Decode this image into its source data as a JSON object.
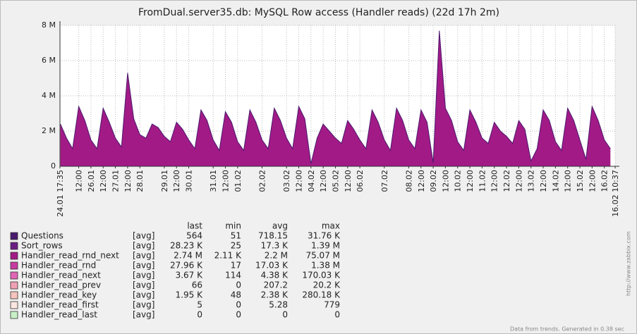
{
  "chart_data": {
    "type": "area",
    "title": "FromDual.server35.db: MySQL Row access (Handler reads)  (22d 17h 2m)",
    "x": [
      "24.01 18:00",
      "25.01 00:00",
      "25.01 06:00",
      "25.01 12:00",
      "25.01 18:00",
      "26.01 00:00",
      "26.01 06:00",
      "26.01 12:00",
      "26.01 18:00",
      "27.01 00:00",
      "27.01 06:00",
      "27.01 12:00",
      "27.01 18:00",
      "28.01 00:00",
      "28.01 06:00",
      "28.01 12:00",
      "28.01 18:00",
      "29.01 00:00",
      "29.01 06:00",
      "29.01 12:00",
      "29.01 18:00",
      "30.01 00:00",
      "30.01 06:00",
      "30.01 12:00",
      "30.01 18:00",
      "31.01 00:00",
      "31.01 06:00",
      "31.01 12:00",
      "31.01 18:00",
      "01.02 00:00",
      "01.02 06:00",
      "01.02 12:00",
      "01.02 18:00",
      "02.02 00:00",
      "02.02 06:00",
      "02.02 12:00",
      "02.02 18:00",
      "03.02 00:00",
      "03.02 06:00",
      "03.02 12:00",
      "03.02 18:00",
      "04.02 00:00",
      "04.02 06:00",
      "04.02 12:00",
      "04.02 18:00",
      "05.02 00:00",
      "05.02 06:00",
      "05.02 12:00",
      "05.02 18:00",
      "06.02 00:00",
      "06.02 06:00",
      "06.02 12:00",
      "06.02 18:00",
      "07.02 00:00",
      "07.02 06:00",
      "07.02 12:00",
      "07.02 18:00",
      "08.02 00:00",
      "08.02 06:00",
      "08.02 12:00",
      "08.02 18:00",
      "09.02 00:00",
      "09.02 06:00",
      "09.02 12:00",
      "09.02 18:00",
      "10.02 00:00",
      "10.02 06:00",
      "10.02 12:00",
      "10.02 18:00",
      "11.02 00:00",
      "11.02 06:00",
      "11.02 12:00",
      "11.02 18:00",
      "12.02 00:00",
      "12.02 06:00",
      "12.02 12:00",
      "12.02 18:00",
      "13.02 00:00",
      "13.02 06:00",
      "13.02 12:00",
      "13.02 18:00",
      "14.02 00:00",
      "14.02 06:00",
      "14.02 12:00",
      "14.02 18:00",
      "15.02 00:00",
      "15.02 06:00",
      "15.02 12:00",
      "15.02 18:00",
      "16.02 00:00",
      "16.02 06:00"
    ],
    "xlim": [
      "24.01 17:35",
      "16.02 10:37"
    ],
    "xticks": [
      {
        "value": "24.01 17:35",
        "label": "24.01 17:35"
      },
      {
        "value": "25.01 12:00",
        "label": "12:00"
      },
      {
        "value": "26.01 00:00",
        "label": "26.01"
      },
      {
        "value": "26.01 12:00",
        "label": "12:00"
      },
      {
        "value": "27.01 00:00",
        "label": "27.01"
      },
      {
        "value": "27.01 12:00",
        "label": "12:00"
      },
      {
        "value": "28.01 00:00",
        "label": "28.01"
      },
      {
        "value": "29.01 00:00",
        "label": "29.01"
      },
      {
        "value": "29.01 12:00",
        "label": "12:00"
      },
      {
        "value": "30.01 00:00",
        "label": "30.01"
      },
      {
        "value": "31.01 00:00",
        "label": "31.01"
      },
      {
        "value": "31.01 12:00",
        "label": "12:00"
      },
      {
        "value": "01.02 00:00",
        "label": "01.02"
      },
      {
        "value": "02.02 00:00",
        "label": "02.02"
      },
      {
        "value": "03.02 00:00",
        "label": "03.02"
      },
      {
        "value": "03.02 12:00",
        "label": "12:00"
      },
      {
        "value": "04.02 00:00",
        "label": "04.02"
      },
      {
        "value": "04.02 12:00",
        "label": "12:00"
      },
      {
        "value": "05.02 00:00",
        "label": "05.02"
      },
      {
        "value": "05.02 12:00",
        "label": "12:00"
      },
      {
        "value": "06.02 00:00",
        "label": "06.02"
      },
      {
        "value": "07.02 00:00",
        "label": "07.02"
      },
      {
        "value": "08.02 00:00",
        "label": "08.02"
      },
      {
        "value": "08.02 12:00",
        "label": "12:00"
      },
      {
        "value": "09.02 00:00",
        "label": "09.02"
      },
      {
        "value": "09.02 12:00",
        "label": "12:00"
      },
      {
        "value": "10.02 00:00",
        "label": "10.02"
      },
      {
        "value": "10.02 12:00",
        "label": "12:00"
      },
      {
        "value": "11.02 00:00",
        "label": "11.02"
      },
      {
        "value": "11.02 12:00",
        "label": "12:00"
      },
      {
        "value": "12.02 00:00",
        "label": "12.02"
      },
      {
        "value": "12.02 12:00",
        "label": "12:00"
      },
      {
        "value": "13.02 00:00",
        "label": "13.02"
      },
      {
        "value": "13.02 12:00",
        "label": "12:00"
      },
      {
        "value": "14.02 00:00",
        "label": "14.02"
      },
      {
        "value": "14.02 12:00",
        "label": "12:00"
      },
      {
        "value": "15.02 00:00",
        "label": "15.02"
      },
      {
        "value": "15.02 12:00",
        "label": "12:00"
      },
      {
        "value": "16.02 00:00",
        "label": "16.02"
      },
      {
        "value": "16.02 10:37",
        "label": "16.02 10:37"
      }
    ],
    "ylim": [
      0,
      8000000
    ],
    "yticks": [
      0,
      {
        "value": 2000000,
        "label": "2 M"
      },
      {
        "value": 4000000,
        "label": "4 M"
      },
      {
        "value": 6000000,
        "label": "6 M"
      },
      {
        "value": 8000000,
        "label": "8 M"
      }
    ],
    "grid": true,
    "columns": [
      "last",
      "min",
      "avg",
      "max"
    ],
    "series": [
      {
        "name": "Questions",
        "color": "#4a1a6e",
        "func": "[avg]",
        "last": "564",
        "min": "51",
        "avg": "718.15",
        "max": "31.76 K"
      },
      {
        "name": "Sort_rows",
        "color": "#6b1d82",
        "func": "[avg]",
        "last": "28.23 K",
        "min": "25",
        "avg": "17.3 K",
        "max": "1.39 M"
      },
      {
        "name": "Handler_read_rnd_next",
        "color": "#a21a86",
        "func": "[avg]",
        "last": "2.74 M",
        "min": "2.11 K",
        "avg": "2.2 M",
        "max": "75.07 M",
        "values": [
          2400000,
          1600000,
          1000000,
          3400000,
          2600000,
          1500000,
          1000000,
          3300000,
          2500000,
          1600000,
          1100000,
          5300000,
          2700000,
          1800000,
          1600000,
          2400000,
          2200000,
          1700000,
          1400000,
          2500000,
          2100000,
          1500000,
          1000000,
          3200000,
          2600000,
          1500000,
          900000,
          3100000,
          2500000,
          1400000,
          900000,
          3200000,
          2500000,
          1500000,
          1000000,
          3300000,
          2600000,
          1600000,
          1000000,
          3400000,
          2700000,
          150000,
          1600000,
          2400000,
          2000000,
          1600000,
          1300000,
          2600000,
          2100000,
          1500000,
          1000000,
          3200000,
          2500000,
          1500000,
          900000,
          3300000,
          2600000,
          1500000,
          1000000,
          3200000,
          2500000,
          200000,
          7700000,
          3300000,
          2600000,
          1400000,
          900000,
          3200000,
          2500000,
          1600000,
          1300000,
          2500000,
          2000000,
          1700000,
          1300000,
          2600000,
          2100000,
          300000,
          1000000,
          3200000,
          2600000,
          1400000,
          900000,
          3300000,
          2600000,
          1500000,
          400000,
          3400000,
          2600000,
          1500000,
          1000000
        ]
      },
      {
        "name": "Handler_read_rnd",
        "color": "#c63c9f",
        "func": "[avg]",
        "last": "27.96 K",
        "min": "17",
        "avg": "17.03 K",
        "max": "1.38 M"
      },
      {
        "name": "Handler_read_next",
        "color": "#e064b4",
        "func": "[avg]",
        "last": "3.67 K",
        "min": "114",
        "avg": "4.38 K",
        "max": "170.03 K"
      },
      {
        "name": "Handler_read_prev",
        "color": "#f0a0b4",
        "func": "[avg]",
        "last": "66",
        "min": "0",
        "avg": "207.2",
        "max": "20.2 K"
      },
      {
        "name": "Handler_read_key",
        "color": "#f6c4bc",
        "func": "[avg]",
        "last": "1.95 K",
        "min": "48",
        "avg": "2.38 K",
        "max": "280.18 K"
      },
      {
        "name": "Handler_read_first",
        "color": "#fbe6e0",
        "func": "[avg]",
        "last": "5",
        "min": "0",
        "avg": "5.28",
        "max": "779"
      },
      {
        "name": "Handler_read_last",
        "color": "#c8f0c8",
        "func": "[avg]",
        "last": "0",
        "min": "0",
        "avg": "0",
        "max": "0"
      }
    ],
    "footer": "Data from trends. Generated in 0.38 sec",
    "watermark": "http://www.zabbix.com"
  }
}
